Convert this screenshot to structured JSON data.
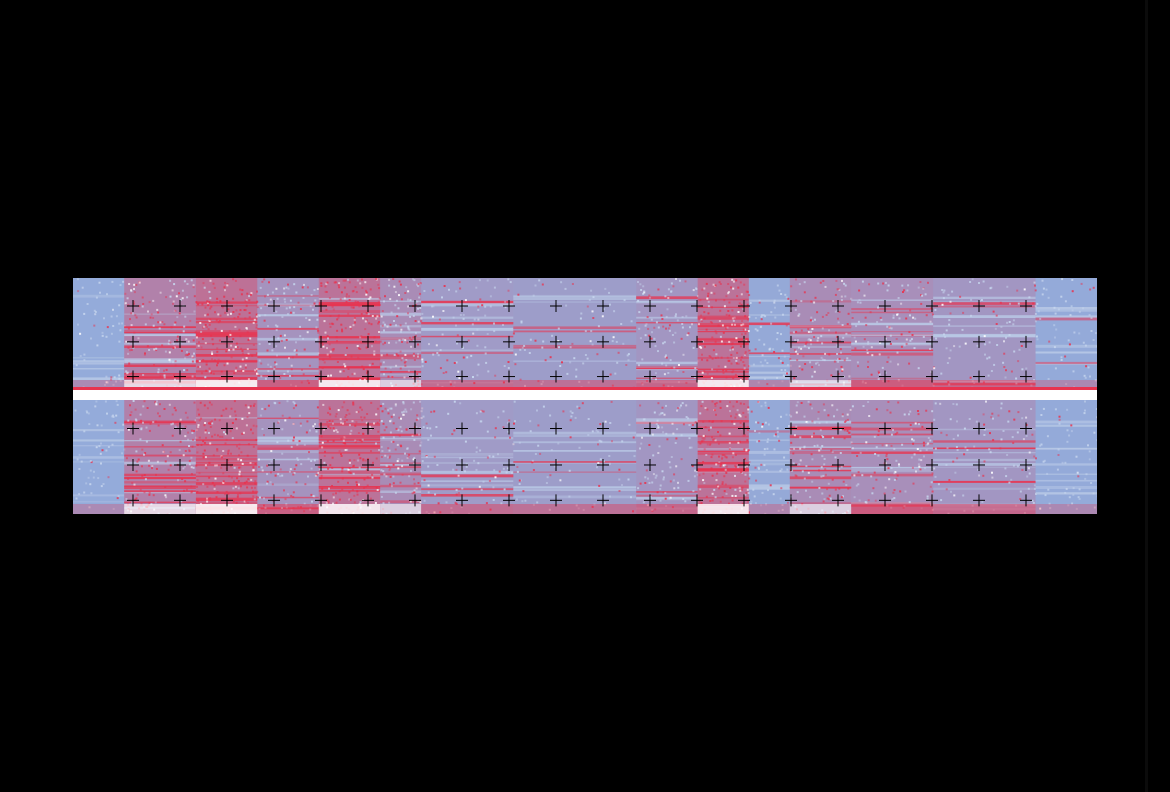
{
  "view": {
    "type": "spectrogram",
    "channels": 2,
    "colors": {
      "background": "#000000",
      "quiet": "#8fb3e3",
      "loud": "#e8334f",
      "peak": "#ffffff",
      "grid_marker": "#000000"
    },
    "segments": [
      {
        "start": 0.0,
        "end": 0.05,
        "level": 0.1
      },
      {
        "start": 0.05,
        "end": 0.12,
        "level": 0.7
      },
      {
        "start": 0.12,
        "end": 0.18,
        "level": 0.95
      },
      {
        "start": 0.18,
        "end": 0.24,
        "level": 0.45
      },
      {
        "start": 0.24,
        "end": 0.3,
        "level": 0.9
      },
      {
        "start": 0.3,
        "end": 0.34,
        "level": 0.55
      },
      {
        "start": 0.34,
        "end": 0.43,
        "level": 0.35
      },
      {
        "start": 0.43,
        "end": 0.55,
        "level": 0.3
      },
      {
        "start": 0.55,
        "end": 0.61,
        "level": 0.4
      },
      {
        "start": 0.61,
        "end": 0.66,
        "level": 0.9
      },
      {
        "start": 0.66,
        "end": 0.7,
        "level": 0.15
      },
      {
        "start": 0.7,
        "end": 0.76,
        "level": 0.55
      },
      {
        "start": 0.76,
        "end": 0.84,
        "level": 0.5
      },
      {
        "start": 0.84,
        "end": 0.94,
        "level": 0.4
      },
      {
        "start": 0.94,
        "end": 1.0,
        "level": 0.12
      }
    ]
  }
}
